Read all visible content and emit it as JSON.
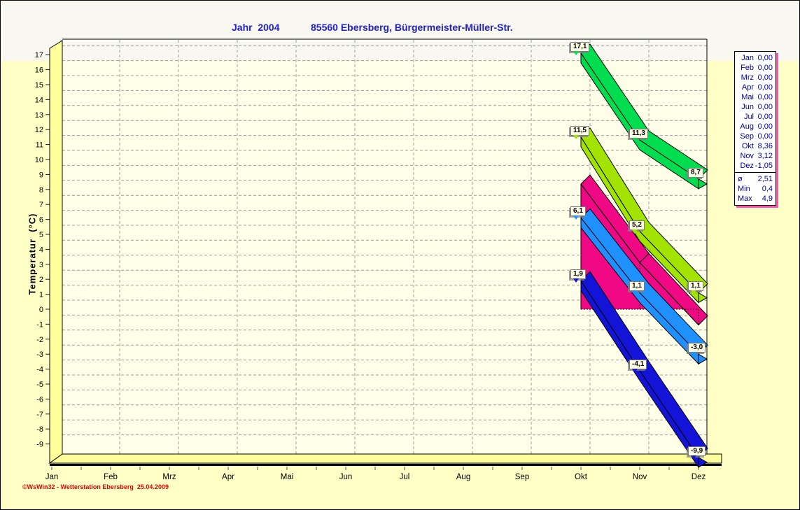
{
  "window": {
    "outer_bg": "#FFFFC6",
    "top_band_bg": "#F8F8F1",
    "plot_bg": "#FFFFE9",
    "wall_floor_color": "#FFFF9C",
    "grid_color": "#9C9C9C"
  },
  "title": {
    "year_label": "Jahr  2004",
    "station_label": "85560 Ebersberg, Bürgermeister-Müller-Str.",
    "color": "#2121CC"
  },
  "chart_data": {
    "type": "line",
    "title": "Jahr 2004 — 85560 Ebersberg, Bürgermeister-Müller-Str.",
    "ylabel": "Temperatur (°C)",
    "ylabel_display": "Temperatur  (°C)",
    "ylim": [
      -9,
      17
    ],
    "ytick_step": 1,
    "grid": true,
    "categories": [
      "Jan",
      "Feb",
      "Mrz",
      "Apr",
      "Mai",
      "Jun",
      "Jul",
      "Aug",
      "Sep",
      "Okt",
      "Nov",
      "Dez"
    ],
    "plotted_months": [
      "Okt",
      "Nov",
      "Dez"
    ],
    "series": [
      {
        "name": "green-ribbon",
        "style": "ribbon",
        "color": "#00DE50",
        "values": [
          17.1,
          11.3,
          8.7
        ],
        "point_labels": [
          "17,1",
          "11,3",
          "8,7"
        ]
      },
      {
        "name": "light-green-ribbon",
        "style": "ribbon",
        "color": "#A2E400",
        "values": [
          11.5,
          5.2,
          1.1
        ],
        "point_labels": [
          "11,5",
          "5,2",
          "1,1"
        ]
      },
      {
        "name": "pink-area",
        "style": "area3d",
        "color": "#F00884",
        "values": [
          8.36,
          3.12,
          -1.05
        ],
        "point_labels": []
      },
      {
        "name": "light-blue-ribbon",
        "style": "ribbon",
        "color": "#1E90FF",
        "values": [
          6.1,
          1.1,
          -3.0
        ],
        "point_labels": [
          "6,1",
          "1,1",
          "-3,0"
        ]
      },
      {
        "name": "dark-blue-ribbon",
        "style": "ribbon",
        "color": "#1414D8",
        "values": [
          1.9,
          -4.1,
          -9.9
        ],
        "point_labels": [
          "1,9",
          "-4,1",
          "-9,9"
        ]
      }
    ]
  },
  "legend": {
    "text_color": "#000099",
    "rows": [
      [
        "Jan",
        "0,00"
      ],
      [
        "Feb",
        "0,00"
      ],
      [
        "Mrz",
        "0,00"
      ],
      [
        "Apr",
        "0,00"
      ],
      [
        "Mai",
        "0,00"
      ],
      [
        "Jun",
        "0,00"
      ],
      [
        "Jul",
        "0,00"
      ],
      [
        "Aug",
        "0,00"
      ],
      [
        "Sep",
        "0,00"
      ],
      [
        "Okt",
        "8,36"
      ],
      [
        "Nov",
        "3,12"
      ],
      [
        "Dez",
        "-1,05"
      ]
    ],
    "stats": [
      [
        "ø",
        "2,51"
      ],
      [
        "Min",
        "0,4"
      ],
      [
        "Max",
        "4,9"
      ]
    ]
  },
  "footer": {
    "copyright": "©WsWin32 - Wetterstation Ebersberg  25.04.2009",
    "color": "#E60000"
  }
}
